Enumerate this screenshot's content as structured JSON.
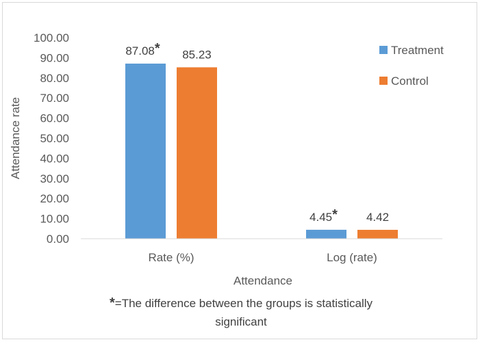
{
  "chart_data": {
    "type": "bar",
    "categories": [
      "Rate (%)",
      "Log (rate)"
    ],
    "series": [
      {
        "name": "Treatment",
        "values": [
          87.08,
          4.45
        ],
        "labels": [
          "87.08",
          "4.45"
        ],
        "marked": [
          true,
          true
        ],
        "color": "#5b9bd5"
      },
      {
        "name": "Control",
        "values": [
          85.23,
          4.42
        ],
        "labels": [
          "85.23",
          "4.42"
        ],
        "marked": [
          false,
          false
        ],
        "color": "#ed7d31"
      }
    ],
    "xlabel": "Attendance",
    "ylabel": "Attendance rate",
    "ylim": [
      0,
      100
    ],
    "yticks": [
      "0.00",
      "10.00",
      "20.00",
      "30.00",
      "40.00",
      "50.00",
      "60.00",
      "70.00",
      "80.00",
      "90.00",
      "100.00"
    ],
    "grid": false,
    "legend_position": "top-right",
    "significance_marker": "*",
    "footnote": {
      "marker": "*",
      "line1": "=The difference between the groups is statistically",
      "line2": "significant"
    }
  }
}
